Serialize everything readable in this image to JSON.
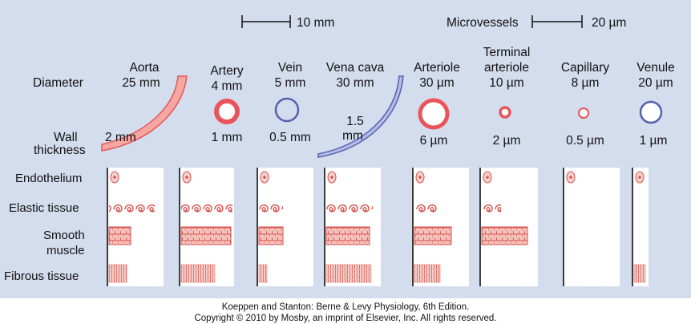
{
  "scale_bars": {
    "small": "10 mm",
    "micro_title": "Microvessels",
    "micro": "20 µm"
  },
  "row_labels": {
    "diameter": "Diameter",
    "wall_line1": "Wall",
    "wall_line2": "thickness",
    "endothelium": "Endothelium",
    "elastic": "Elastic tissue",
    "smooth1": "Smooth",
    "smooth2": "muscle",
    "fibrous": "Fibrous tissue"
  },
  "vessels": {
    "aorta": {
      "name": "Aorta",
      "diameter": "25 mm",
      "wall": "2 mm"
    },
    "artery": {
      "name": "Artery",
      "diameter": "4 mm",
      "wall": "1 mm"
    },
    "vein": {
      "name": "Vein",
      "diameter": "5 mm",
      "wall": "0.5 mm"
    },
    "vena_cava": {
      "name": "Vena cava",
      "diameter": "30 mm",
      "wall1": "1.5",
      "wall2": "mm"
    },
    "arteriole": {
      "name": "Arteriole",
      "diameter": "30 µm",
      "wall": "6 µm"
    },
    "terminal": {
      "name1": "Terminal",
      "name2": "arteriole",
      "diameter": "10 µm",
      "wall": "2 µm"
    },
    "capillary": {
      "name": "Capillary",
      "diameter": "8 µm",
      "wall": "0.5 µm"
    },
    "venule": {
      "name": "Venule",
      "diameter": "20 µm",
      "wall": "1 µm"
    }
  },
  "colors": {
    "artery": "#e8545a",
    "artery_fill": "#f7a7a1",
    "vein": "#5660b0",
    "vein_fill": "#b6bce8"
  },
  "credit": {
    "line1": "Koeppen and Stanton: Berne & Levy Physiology, 6th Edition.",
    "line2": "Copyright © 2010 by Mosby, an imprint of Elsevier, Inc. All rights reserved."
  }
}
